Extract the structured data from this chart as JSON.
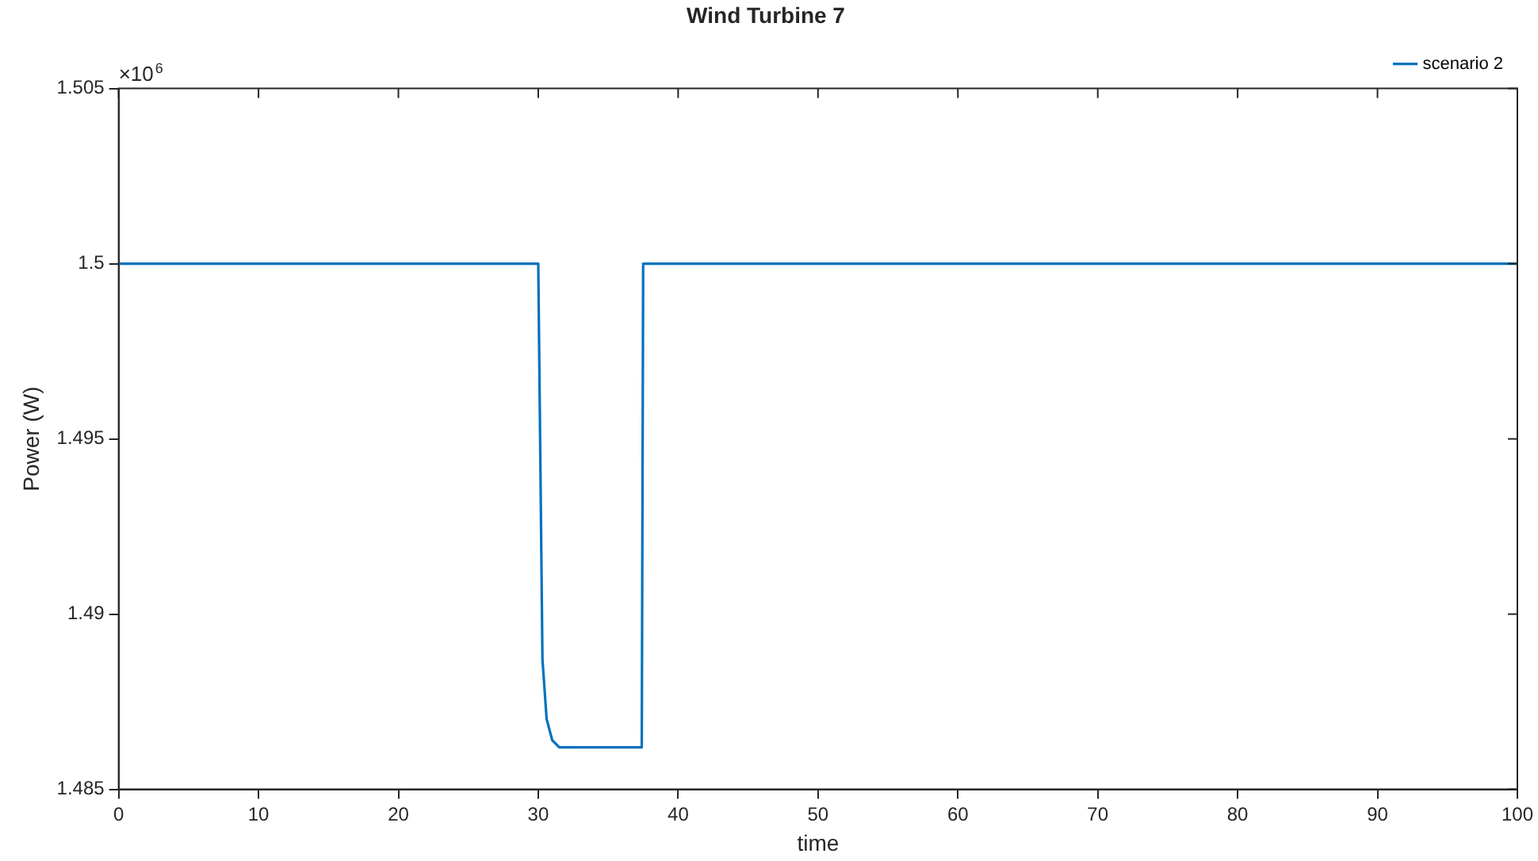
{
  "chart_data": {
    "type": "line",
    "title": "Wind Turbine 7",
    "xlabel": "time",
    "ylabel": "Power (W)",
    "annotations": [
      "×10$^{6}$"
    ],
    "xlim": [
      0,
      100
    ],
    "xticks": [
      0,
      10,
      20,
      30,
      40,
      50,
      60,
      70,
      80,
      90,
      100
    ],
    "ylim": [
      1.485,
      1.505
    ],
    "yticks": [
      1.485,
      1.49,
      1.495,
      1.5,
      1.505
    ],
    "grid": false,
    "legend": "top right",
    "marker": "none",
    "line_style": "solid",
    "series": [
      {
        "name": "scenario 2",
        "color": "#0072bd",
        "x": [
          0,
          30.0,
          30.3,
          30.6,
          31.0,
          31.5,
          37.4,
          37.5,
          100
        ],
        "values": [
          1.5,
          1.5,
          1.4887,
          1.487,
          1.4864,
          1.4862,
          1.4862,
          1.5,
          1.5
        ]
      }
    ]
  }
}
